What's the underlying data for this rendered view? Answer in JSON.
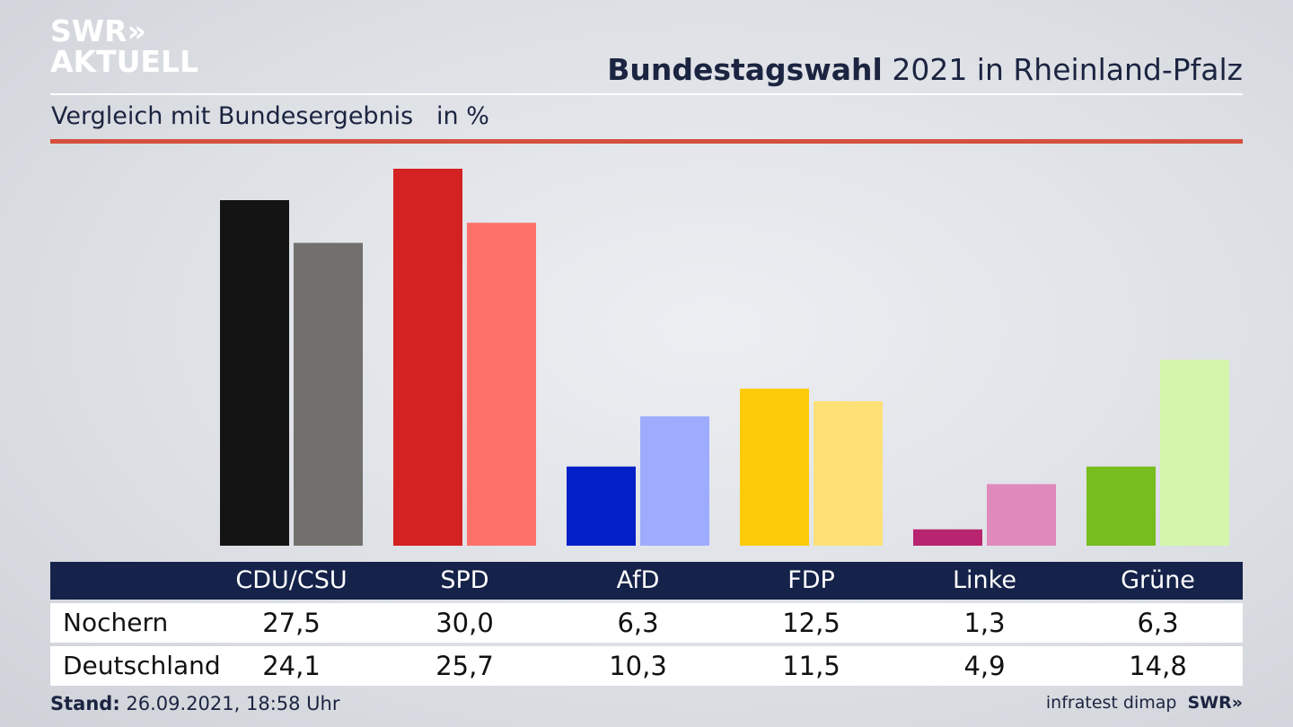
{
  "logo": {
    "line1": "SWR»",
    "line2": "AKTUELL"
  },
  "header": {
    "title_bold": "Bundestagswahl",
    "title_rest": " 2021 in Rheinland-Pfalz"
  },
  "subtitle": "Vergleich mit Bundesergebnis   in %",
  "footer": {
    "stand_label": "Stand:",
    "stand_value": " 26.09.2021, 18:58 Uhr",
    "source": "infratest dimap",
    "brand": "SWR»"
  },
  "chart_data": {
    "type": "bar",
    "categories": [
      "CDU/CSU",
      "SPD",
      "AfD",
      "FDP",
      "Linke",
      "Grüne"
    ],
    "series": [
      {
        "name": "Nochern",
        "values": [
          27.5,
          30.0,
          6.3,
          12.5,
          1.3,
          6.3
        ],
        "labels": [
          "27,5",
          "30,0",
          "6,3",
          "12,5",
          "1,3",
          "6,3"
        ],
        "colors": [
          "#141414",
          "#d42121",
          "#0320c7",
          "#fdcb0a",
          "#b8246f",
          "#77bd1e"
        ]
      },
      {
        "name": "Deutschland",
        "values": [
          24.1,
          25.7,
          10.3,
          11.5,
          4.9,
          14.8
        ],
        "labels": [
          "24,1",
          "25,7",
          "10,3",
          "11,5",
          "4,9",
          "14,8"
        ],
        "colors": [
          "#72706d",
          "#fd716a",
          "#9eacfd",
          "#fee077",
          "#e089bc",
          "#d4f6aa"
        ]
      }
    ]
  }
}
